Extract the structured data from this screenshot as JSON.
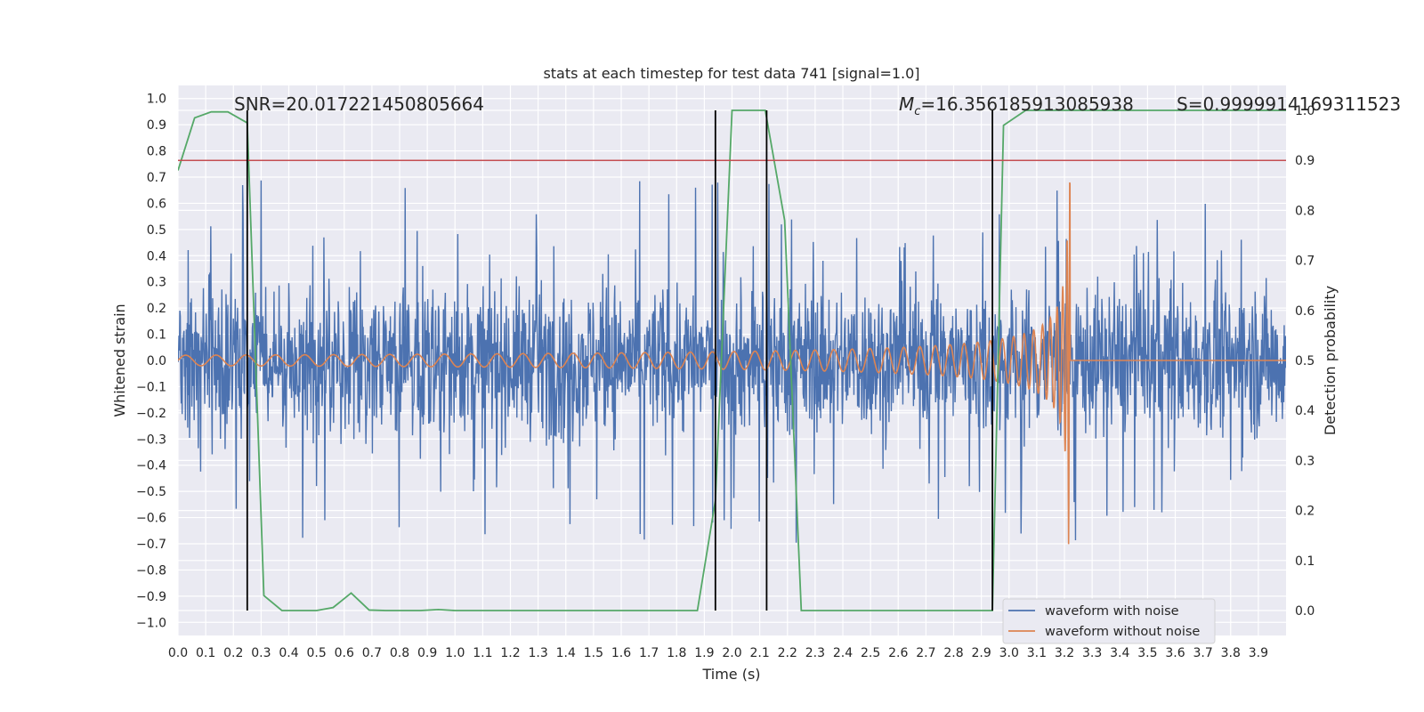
{
  "chart_data": {
    "type": "line",
    "title": "stats at each timestep for test data 741 [signal=1.0]",
    "xlabel": "Time (s)",
    "ylabel_left": "Whitened strain",
    "ylabel_right": "Detection probability",
    "xlim": [
      0.0,
      4.0
    ],
    "ylim_left": [
      -1.05,
      1.05
    ],
    "ylim_right": [
      -0.05,
      1.0
    ],
    "x_ticks": [
      "0.0",
      "0.1",
      "0.2",
      "0.3",
      "0.4",
      "0.5",
      "0.6",
      "0.7",
      "0.8",
      "0.9",
      "1.0",
      "1.1",
      "1.2",
      "1.3",
      "1.4",
      "1.5",
      "1.6",
      "1.7",
      "1.8",
      "1.9",
      "2.0",
      "2.1",
      "2.2",
      "2.3",
      "2.4",
      "2.5",
      "2.6",
      "2.7",
      "2.8",
      "2.9",
      "3.0",
      "3.1",
      "3.2",
      "3.3",
      "3.4",
      "3.5",
      "3.6",
      "3.7",
      "3.8",
      "3.9"
    ],
    "y_ticks_left": [
      "1.0",
      "0.9",
      "0.8",
      "0.7",
      "0.6",
      "0.5",
      "0.4",
      "0.3",
      "0.2",
      "0.1",
      "0.0",
      "−0.1",
      "−0.2",
      "−0.3",
      "−0.4",
      "−0.5",
      "−0.6",
      "−0.7",
      "−0.8",
      "−0.9",
      "−1.0"
    ],
    "y_ticks_right": [
      "1.0",
      "0.9",
      "0.8",
      "0.7",
      "0.6",
      "0.5",
      "0.4",
      "0.3",
      "0.2",
      "0.1",
      "0.0"
    ],
    "grid": true,
    "legend_position": "lower-right",
    "annotations": {
      "snr": "SNR=20.017221450805664",
      "mc_symbol": "M",
      "mc_sub": "c",
      "mc_value": "=16.356185913085938",
      "s": "S=0.9999914169311523"
    },
    "series": [
      {
        "name": "waveform with noise",
        "color": "#4c72b0",
        "description_values": "noise amplitude roughly ±0.35 with peaks to ±0.7, x from 0 to 4 s"
      },
      {
        "name": "waveform without noise",
        "color": "#dd8452",
        "chirp": {
          "t_merge": 3.22,
          "start_amplitude": 0.02,
          "peak_amplitude": 0.72,
          "f_start": 40,
          "f_end": 320
        }
      }
    ],
    "detection_probability": {
      "color": "#55a868",
      "x": [
        0.0,
        0.06,
        0.12,
        0.18,
        0.25,
        0.31,
        0.375,
        0.5,
        0.56,
        0.625,
        0.69,
        0.75,
        0.875,
        0.94,
        1.0,
        1.5,
        1.875,
        1.94,
        2.0,
        2.06,
        2.12,
        2.19,
        2.25,
        2.5,
        2.94,
        2.98,
        3.06,
        3.12,
        3.5,
        4.0
      ],
      "y": [
        0.88,
        0.985,
        0.997,
        0.997,
        0.975,
        0.03,
        0.0,
        0.0,
        0.006,
        0.035,
        0.001,
        0.0,
        0.0,
        0.002,
        0.0,
        0.0,
        0.0,
        0.22,
        1.0,
        1.0,
        1.0,
        0.78,
        0.0,
        0.0,
        0.0,
        0.97,
        1.0,
        1.0,
        1.0,
        1.0
      ]
    },
    "threshold": {
      "value": 0.9,
      "axis": "right",
      "color": "#c44e52"
    },
    "vertical_markers": {
      "x": [
        0.25,
        1.94,
        2.125,
        2.94
      ],
      "color": "#000000"
    },
    "legend": [
      "waveform with noise",
      "waveform without noise"
    ]
  }
}
